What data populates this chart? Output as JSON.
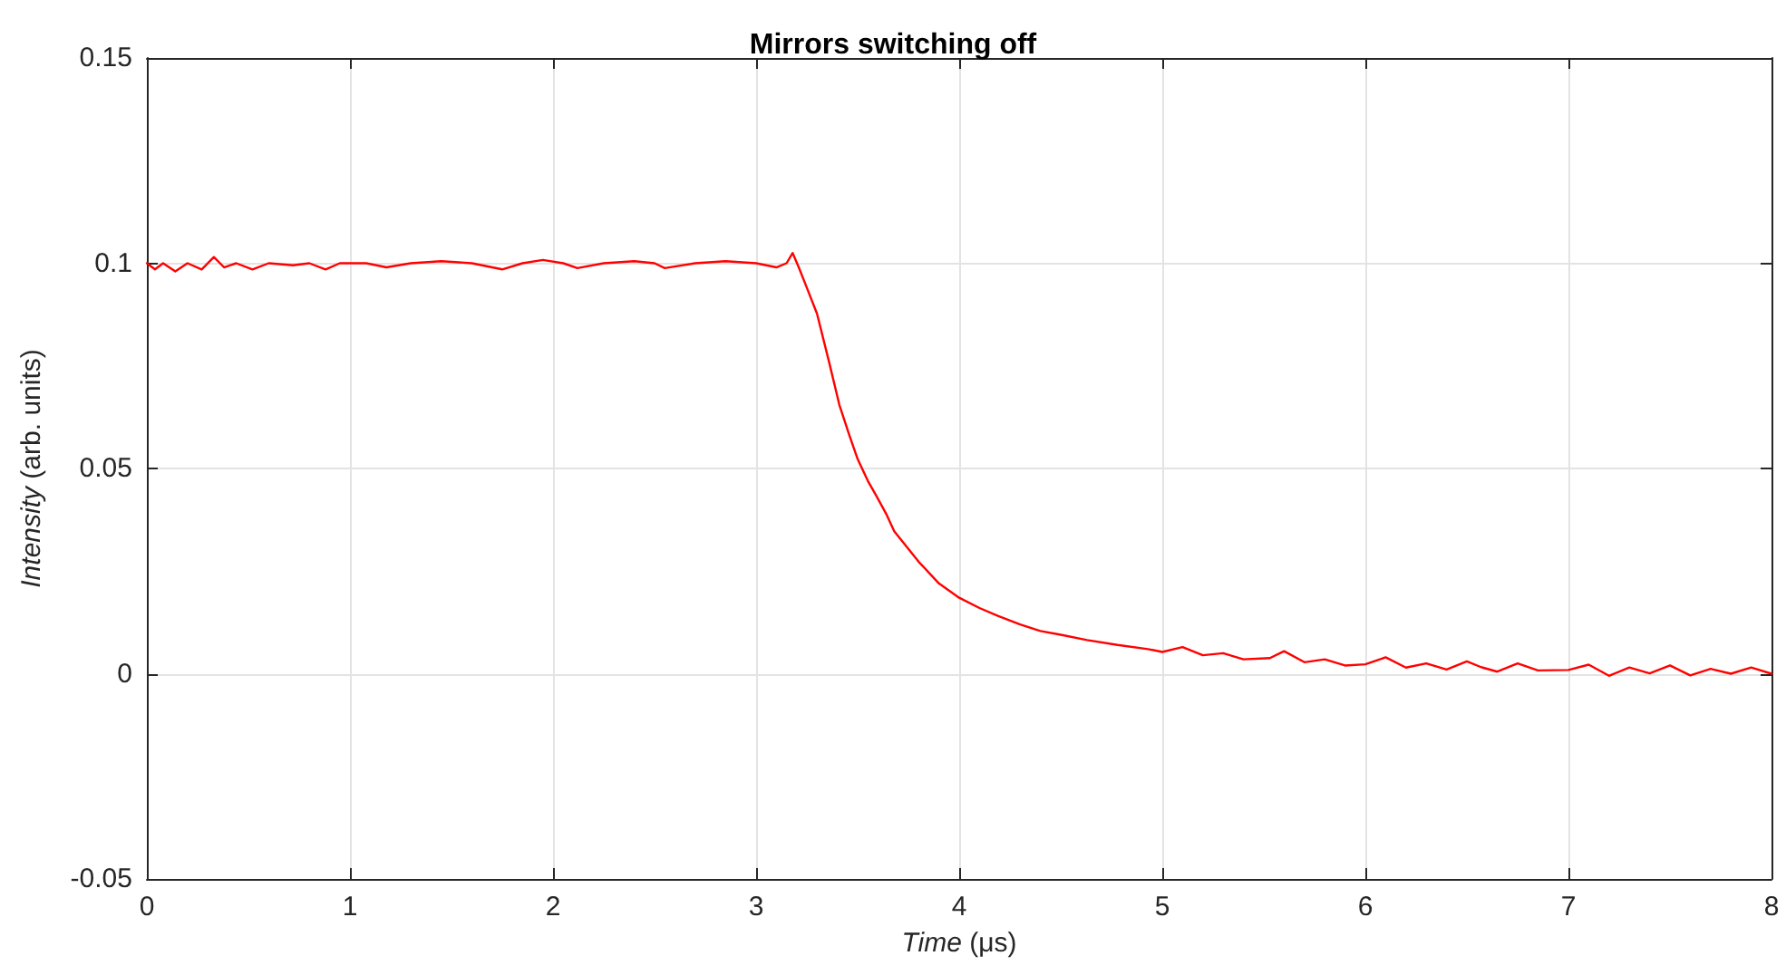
{
  "chart_data": {
    "type": "line",
    "title": "Mirrors switching off",
    "xlabel": "Time (μs)",
    "ylabel": "Intensity (arb. units)",
    "x": [
      0,
      0.04,
      0.08,
      0.14,
      0.2,
      0.27,
      0.33,
      0.38,
      0.44,
      0.52,
      0.6,
      0.72,
      0.8,
      0.88,
      0.95,
      1.08,
      1.18,
      1.3,
      1.45,
      1.6,
      1.75,
      1.85,
      1.95,
      2.05,
      2.12,
      2.25,
      2.4,
      2.5,
      2.55,
      2.7,
      2.85,
      3.0,
      3.1,
      3.15,
      3.18,
      3.21,
      3.25,
      3.3,
      3.36,
      3.41,
      3.46,
      3.5,
      3.55,
      3.59,
      3.64,
      3.68,
      3.74,
      3.8,
      3.9,
      4.0,
      4.1,
      4.19,
      4.3,
      4.4,
      4.5,
      4.63,
      4.78,
      4.93,
      5.0,
      5.1,
      5.2,
      5.3,
      5.4,
      5.53,
      5.6,
      5.7,
      5.8,
      5.9,
      6.0,
      6.1,
      6.2,
      6.3,
      6.4,
      6.5,
      6.57,
      6.65,
      6.75,
      6.85,
      7.0,
      7.1,
      7.2,
      7.3,
      7.4,
      7.5,
      7.6,
      7.7,
      7.8,
      7.9,
      8.0
    ],
    "series": [
      {
        "color": "#ff0000",
        "values": [
          0.1,
          0.0985,
          0.1,
          0.098,
          0.1,
          0.0985,
          0.1015,
          0.099,
          0.1,
          0.0985,
          0.1,
          0.0995,
          0.1,
          0.0985,
          0.1,
          0.1,
          0.099,
          0.1,
          0.1005,
          0.1,
          0.0985,
          0.1,
          0.1008,
          0.1,
          0.0988,
          0.1,
          0.1005,
          0.1,
          0.0988,
          0.1,
          0.1005,
          0.1,
          0.099,
          0.1,
          0.1025,
          0.099,
          0.094,
          0.0877,
          0.0758,
          0.0655,
          0.058,
          0.0523,
          0.047,
          0.0435,
          0.039,
          0.0347,
          0.031,
          0.0273,
          0.022,
          0.0185,
          0.016,
          0.0141,
          0.012,
          0.0104,
          0.0095,
          0.0082,
          0.007,
          0.006,
          0.0053,
          0.0065,
          0.0045,
          0.005,
          0.0035,
          0.0038,
          0.0055,
          0.0028,
          0.0035,
          0.002,
          0.0023,
          0.004,
          0.0015,
          0.0025,
          0.001,
          0.003,
          0.0016,
          0.0005,
          0.0025,
          0.0008,
          0.0009,
          0.0022,
          -0.0005,
          0.0015,
          0.0001,
          0.002,
          -0.0004,
          0.0012,
          0,
          0.0015,
          0
        ]
      }
    ],
    "xlim": [
      0,
      8
    ],
    "ylim": [
      -0.05,
      0.15
    ],
    "xticks": [
      0,
      1,
      2,
      3,
      4,
      5,
      6,
      7,
      8
    ],
    "yticks": [
      -0.05,
      0,
      0.05,
      0.1,
      0.15
    ],
    "grid": true,
    "marker": "none",
    "line_style": "solid"
  }
}
